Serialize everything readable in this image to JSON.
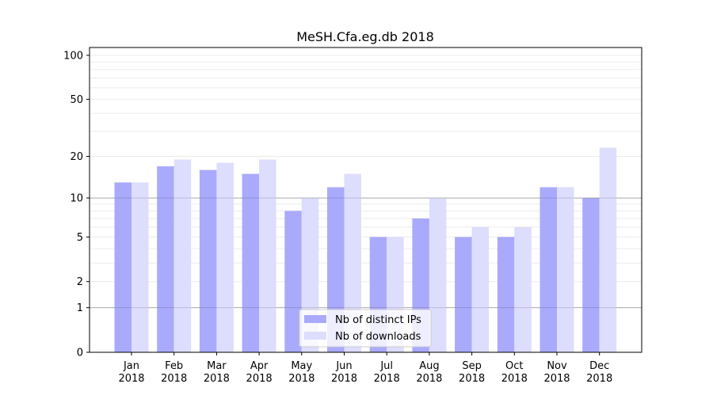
{
  "chart_data": {
    "type": "bar",
    "title": "MeSH.Cfa.eg.db 2018",
    "xlabel": "",
    "ylabel": "",
    "yscale": "log10(1+y)",
    "ylim": [
      0,
      113
    ],
    "yticks": [
      0,
      1,
      2,
      5,
      10,
      20,
      50,
      100
    ],
    "ytick_labels": [
      "0",
      "1",
      "2",
      "5",
      "10",
      "20",
      "50",
      "100"
    ],
    "categories": [
      "Jan\n2018",
      "Feb\n2018",
      "Mar\n2018",
      "Apr\n2018",
      "May\n2018",
      "Jun\n2018",
      "Jul\n2018",
      "Aug\n2018",
      "Sep\n2018",
      "Oct\n2018",
      "Nov\n2018",
      "Dec\n2018"
    ],
    "series": [
      {
        "name": "Nb of distinct IPs",
        "color": "#aaaafc",
        "values": [
          13,
          17,
          16,
          15,
          8,
          12,
          5,
          7,
          5,
          5,
          12,
          10
        ]
      },
      {
        "name": "Nb of downloads",
        "color": "#ddddfd",
        "values": [
          13,
          19,
          18,
          19,
          10,
          15,
          5,
          10,
          6,
          6,
          12,
          23
        ]
      }
    ],
    "legend": "bottom-center",
    "grid": true
  }
}
